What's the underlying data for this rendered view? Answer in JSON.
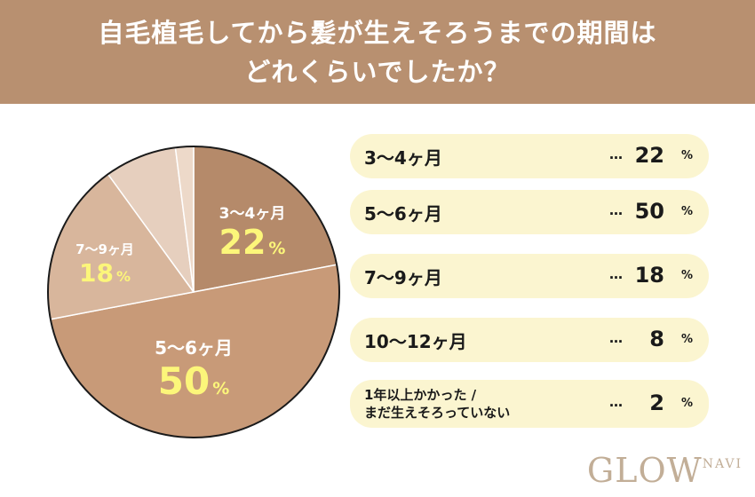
{
  "title": {
    "line1": "自毛植毛してから髪が生えそろうまでの期間は",
    "line2": "どれくらいでしたか？"
  },
  "chart_data": {
    "type": "pie",
    "title": "自毛植毛してから髪が生えそろうまでの期間はどれくらいでしたか？",
    "unit": "%",
    "slices": [
      {
        "label": "3〜4ヶ月",
        "value": 22,
        "color": "#b58a6a"
      },
      {
        "label": "5〜6ヶ月",
        "value": 50,
        "color": "#c89a78"
      },
      {
        "label": "7〜9ヶ月",
        "value": 18,
        "color": "#d8b69c"
      },
      {
        "label": "10〜12ヶ月",
        "value": 8,
        "color": "#e6cfbe"
      },
      {
        "label": "1年以上かかった / まだ生えそろっていない",
        "value": 2,
        "color": "#edd9c9"
      }
    ]
  },
  "pie_labels": [
    {
      "category": "3〜4ヶ月",
      "value": "22",
      "pct": "%"
    },
    {
      "category": "5〜6ヶ月",
      "value": "50",
      "pct": "%"
    },
    {
      "category": "7〜9ヶ月",
      "value": "18",
      "pct": "%"
    }
  ],
  "legend": [
    {
      "label": "3〜4ヶ月",
      "value": "22",
      "pct": "%",
      "dots": "…"
    },
    {
      "label": "5〜6ヶ月",
      "value": "50",
      "pct": "%",
      "dots": "…"
    },
    {
      "label": "7〜9ヶ月",
      "value": "18",
      "pct": "%",
      "dots": "…"
    },
    {
      "label": "10〜12ヶ月",
      "value": "8",
      "pct": "%",
      "dots": "…"
    },
    {
      "label_line1": "1年以上かかった /",
      "label_line2": "まだ生えそろっていない",
      "value": "2",
      "pct": "%",
      "dots": "…"
    }
  ],
  "logo": {
    "main": "GLOW",
    "sub": "NAVI"
  }
}
